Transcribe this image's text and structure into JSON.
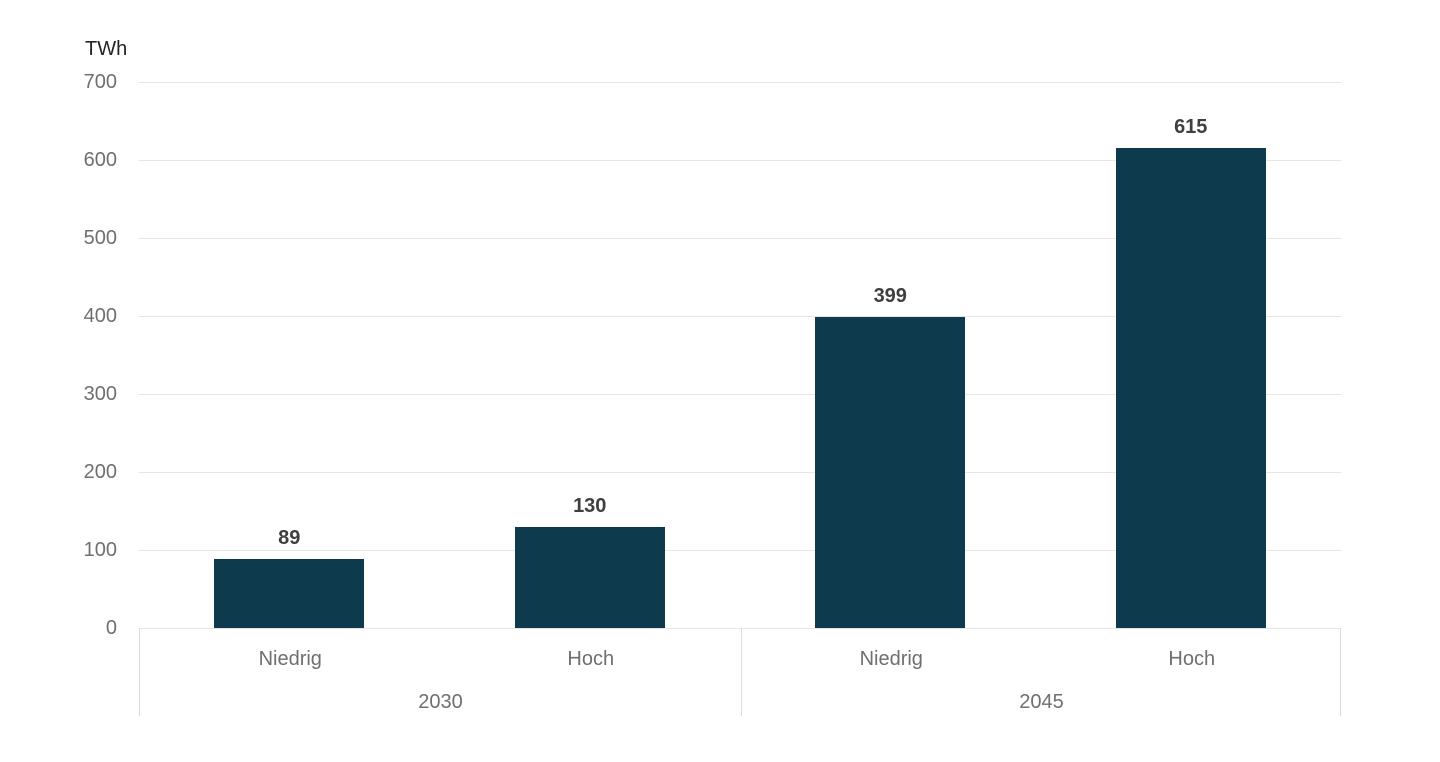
{
  "chart_data": {
    "type": "bar",
    "title": "",
    "unit_label": "TWh",
    "ylabel": "TWh",
    "xlabel": "",
    "ylim": [
      0,
      700
    ],
    "yticks": [
      0,
      100,
      200,
      300,
      400,
      500,
      600,
      700
    ],
    "grid": "horizontal",
    "legend": "none",
    "data_labels": true,
    "groups": [
      {
        "label": "2030",
        "categories": [
          "Niedrig",
          "Hoch"
        ],
        "values": [
          89,
          130
        ]
      },
      {
        "label": "2045",
        "categories": [
          "Niedrig",
          "Hoch"
        ],
        "values": [
          399,
          615
        ]
      }
    ],
    "colors": {
      "bar": "#0e3a4e",
      "gridline": "#e6e6e6",
      "axis_line": "#dcdcdc",
      "tick_label": "#6f6f6f",
      "data_label": "#3f3f3f",
      "unit_label": "#252423"
    }
  }
}
